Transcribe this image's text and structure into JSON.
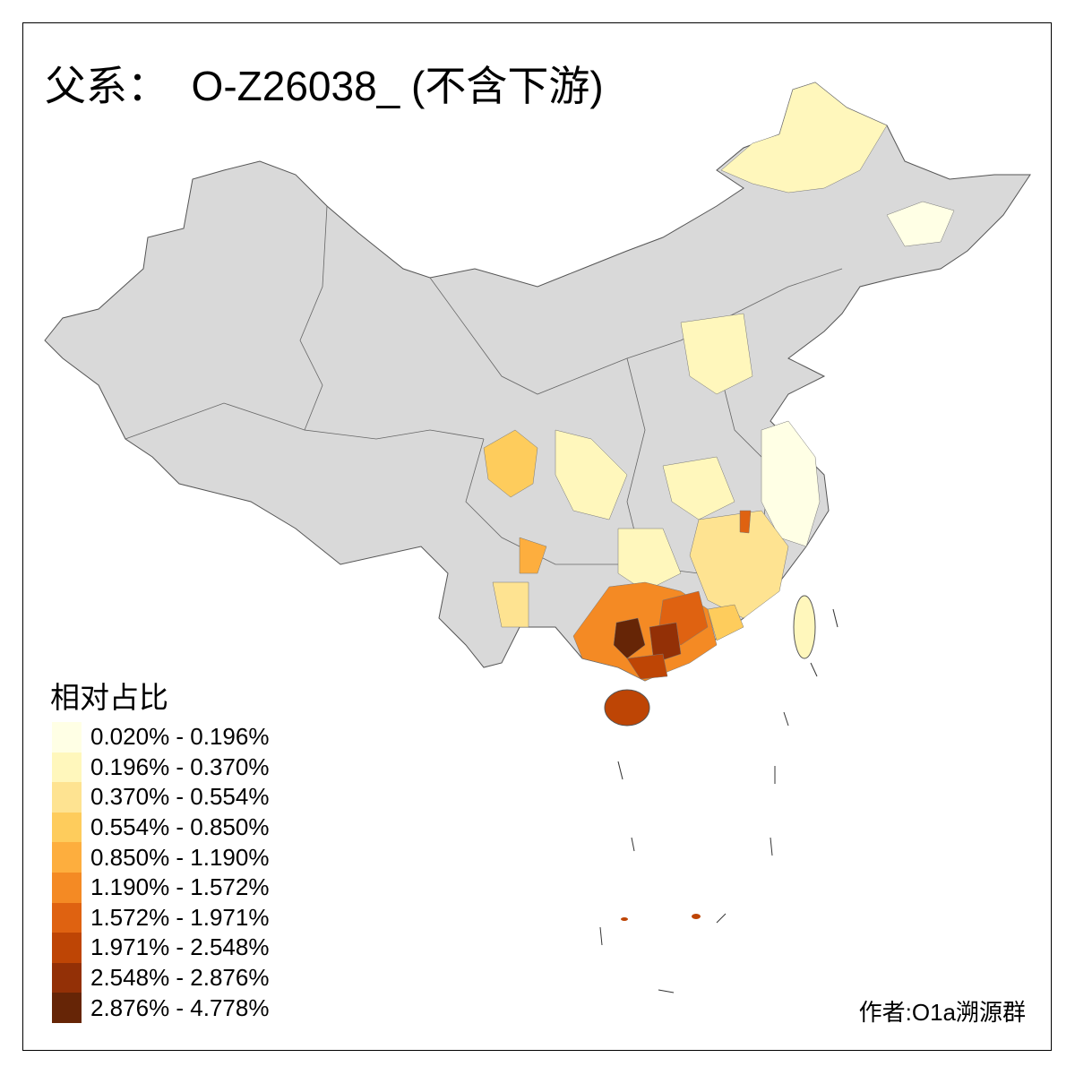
{
  "title": "父系：  O-Z26038_ (不含下游)",
  "legend": {
    "title": "相对占比",
    "items": [
      {
        "label": "0.020% - 0.196%",
        "color": "#FFFFE5"
      },
      {
        "label": "0.196% - 0.370%",
        "color": "#FFF7BC"
      },
      {
        "label": "0.370% - 0.554%",
        "color": "#FEE391"
      },
      {
        "label": "0.554% - 0.850%",
        "color": "#FECC5C"
      },
      {
        "label": "0.850% - 1.190%",
        "color": "#FDAE3E"
      },
      {
        "label": "1.190% - 1.572%",
        "color": "#F48A24"
      },
      {
        "label": "1.572% - 1.971%",
        "color": "#DF6211"
      },
      {
        "label": "1.971% - 2.548%",
        "color": "#BE4505"
      },
      {
        "label": "2.548% - 2.876%",
        "color": "#933006"
      },
      {
        "label": "2.876% - 4.778%",
        "color": "#662506"
      }
    ]
  },
  "author": "作者:O1a溯源群",
  "map": {
    "base_color": "#D9D9D9",
    "border_color": "#555555"
  }
}
